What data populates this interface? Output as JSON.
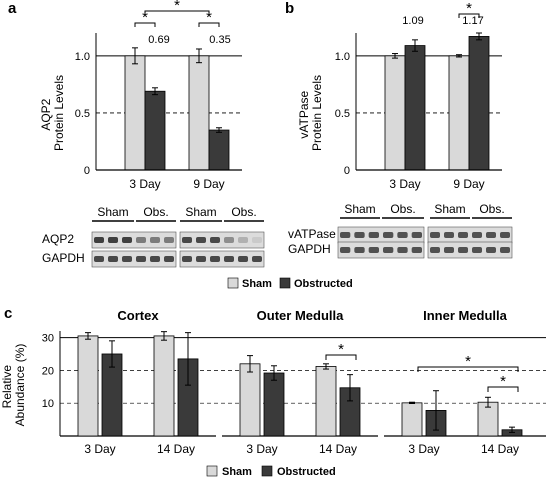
{
  "colors": {
    "sham": "#d9d9d9",
    "obstructed": "#3a3a3a",
    "band": "#2e2e2e",
    "blot_bg": "#dcdcdc"
  },
  "panel_labels": [
    "a",
    "b",
    "c"
  ],
  "legend": {
    "sham": "Sham",
    "obstructed": "Obstructed"
  },
  "blots": {
    "a": {
      "groups": [
        "Sham",
        "Obs.",
        "Sham",
        "Obs."
      ],
      "rows": [
        "AQP2",
        "GAPDH"
      ]
    },
    "b": {
      "groups": [
        "Sham",
        "Obs.",
        "Sham",
        "Obs."
      ],
      "rows": [
        "vATPase",
        "GAPDH"
      ]
    }
  },
  "chart_data": [
    {
      "id": "a",
      "type": "bar",
      "ylabel": "AQP2\nProtein Levels",
      "ylim": [
        0,
        1.2
      ],
      "yticks": [
        "0",
        "0.5",
        "1.0"
      ],
      "reference_lines": [
        1.0,
        0.5
      ],
      "categories": [
        "3 Day",
        "9 Day"
      ],
      "series": [
        {
          "name": "Sham",
          "values": [
            1.0,
            1.0
          ],
          "errors": [
            0.07,
            0.06
          ]
        },
        {
          "name": "Obstructed",
          "values": [
            0.69,
            0.35
          ],
          "errors": [
            0.03,
            0.02
          ]
        }
      ],
      "annotations": [
        "0.69",
        "0.35"
      ],
      "significance": [
        "*",
        "*",
        "*"
      ]
    },
    {
      "id": "b",
      "type": "bar",
      "ylabel": "vATPase\nProtein Levels",
      "ylim": [
        0,
        1.2
      ],
      "yticks": [
        "0",
        "0.5",
        "1.0"
      ],
      "reference_lines": [
        1.0,
        0.5
      ],
      "categories": [
        "3 Day",
        "9 Day"
      ],
      "series": [
        {
          "name": "Sham",
          "values": [
            1.0,
            1.0
          ],
          "errors": [
            0.02,
            0.01
          ]
        },
        {
          "name": "Obstructed",
          "values": [
            1.09,
            1.17
          ],
          "errors": [
            0.05,
            0.03
          ]
        }
      ],
      "annotations": [
        "1.09",
        "1.17"
      ],
      "significance": [
        "*"
      ]
    },
    {
      "id": "c",
      "type": "bar",
      "ylabel": "Relative\nAbundance (%)",
      "ylim": [
        0,
        32
      ],
      "yticks": [
        "10",
        "20",
        "30"
      ],
      "grid_dashed": [
        10,
        20,
        30
      ],
      "subplots": [
        {
          "title": "Cortex",
          "categories": [
            "3 Day",
            "14 Day"
          ],
          "series": [
            {
              "name": "Sham",
              "values": [
                30.5,
                30.5
              ],
              "errors": [
                1.0,
                1.3
              ]
            },
            {
              "name": "Obstructed",
              "values": [
                25.0,
                23.5
              ],
              "errors": [
                4.0,
                8.0
              ]
            }
          ],
          "significance": []
        },
        {
          "title": "Outer Medulla",
          "categories": [
            "3 Day",
            "14 Day"
          ],
          "series": [
            {
              "name": "Sham",
              "values": [
                22.0,
                21.2
              ],
              "errors": [
                2.5,
                0.8
              ]
            },
            {
              "name": "Obstructed",
              "values": [
                19.2,
                14.7
              ],
              "errors": [
                2.2,
                4.0
              ]
            }
          ],
          "significance": [
            "*"
          ]
        },
        {
          "title": "Inner Medulla",
          "categories": [
            "3 Day",
            "14 Day"
          ],
          "series": [
            {
              "name": "Sham",
              "values": [
                10.1,
                10.3
              ],
              "errors": [
                0.2,
                1.5
              ]
            },
            {
              "name": "Obstructed",
              "values": [
                7.8,
                1.9
              ],
              "errors": [
                6.0,
                0.8
              ]
            }
          ],
          "significance": [
            "*",
            "*"
          ]
        }
      ]
    }
  ]
}
